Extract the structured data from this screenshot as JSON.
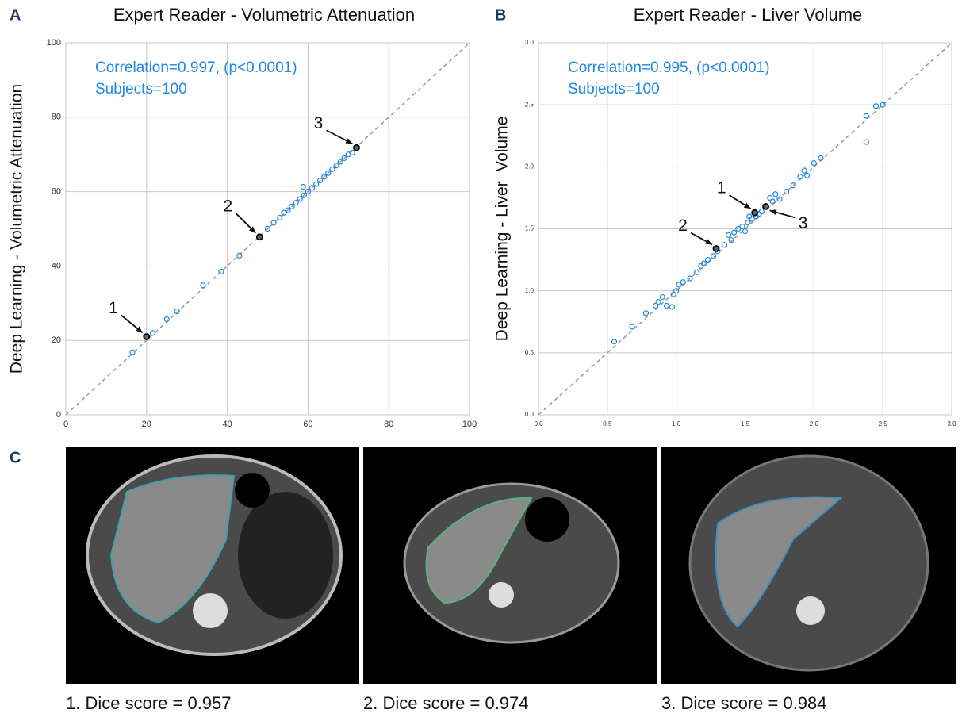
{
  "panel_labels": [
    "A",
    "B",
    "C"
  ],
  "chart_data": [
    {
      "type": "scatter",
      "title": "Expert Reader - Volumetric Attenuation",
      "y_label": "Deep Learning - Volumetric Attenuation",
      "annotations": [
        "Correlation=0.997, (p<0.0001)",
        "Subjects=100"
      ],
      "color": "#1e88e5",
      "x": [
        16.5,
        21.5,
        25,
        27.5,
        34,
        38.5,
        43,
        50,
        51.5,
        53,
        54,
        55,
        56,
        57,
        58,
        58.8,
        59,
        60,
        61,
        62,
        63,
        64,
        65,
        66,
        67,
        68,
        69,
        70,
        71
      ],
      "values": [
        16.8,
        22,
        25.7,
        27.8,
        34.8,
        38.5,
        42.8,
        50,
        51.6,
        53,
        54.3,
        55,
        56,
        57,
        58,
        61.3,
        59,
        60,
        61,
        62,
        63,
        64,
        65,
        66,
        67,
        68,
        69,
        70,
        70.5
      ],
      "highlight": {
        "x": [
          20,
          48,
          72
        ],
        "values": [
          21,
          47.8,
          71.8
        ],
        "labels": [
          "1",
          "2",
          "3"
        ]
      },
      "xlim": [
        0,
        100
      ],
      "ylim": [
        0,
        100
      ],
      "xticks": [
        0,
        20,
        40,
        60,
        80,
        100
      ],
      "yticks": [
        0,
        20,
        40,
        60,
        80,
        100
      ],
      "grid": true
    },
    {
      "type": "scatter",
      "title": "Expert Reader - Liver Volume",
      "y_label": "Deep Learning - Liver  Volume",
      "annotations": [
        "Correlation=0.995, (p<0.0001)",
        "Subjects=100"
      ],
      "color": "#1e88e5",
      "x": [
        0.55,
        0.68,
        0.78,
        0.85,
        0.87,
        0.9,
        0.93,
        0.97,
        0.98,
        1.0,
        1.02,
        1.05,
        1.1,
        1.15,
        1.18,
        1.2,
        1.23,
        1.27,
        1.3,
        1.35,
        1.38,
        1.4,
        1.42,
        1.45,
        1.48,
        1.5,
        1.52,
        1.53,
        1.55,
        1.58,
        1.6,
        1.62,
        1.68,
        1.7,
        1.72,
        1.75,
        1.8,
        1.85,
        1.9,
        1.93,
        1.95,
        2.0,
        2.05,
        2.38,
        2.38,
        2.45,
        2.5
      ],
      "values": [
        0.59,
        0.71,
        0.82,
        0.88,
        0.91,
        0.95,
        0.88,
        0.87,
        0.97,
        1.0,
        1.05,
        1.07,
        1.1,
        1.15,
        1.2,
        1.22,
        1.25,
        1.28,
        1.32,
        1.37,
        1.45,
        1.41,
        1.47,
        1.5,
        1.52,
        1.48,
        1.55,
        1.6,
        1.58,
        1.6,
        1.62,
        1.64,
        1.75,
        1.72,
        1.78,
        1.74,
        1.8,
        1.85,
        1.92,
        1.97,
        1.93,
        2.03,
        2.07,
        2.41,
        2.2,
        2.49,
        2.5
      ],
      "highlight": {
        "x": [
          1.57,
          1.29,
          1.65
        ],
        "values": [
          1.63,
          1.34,
          1.68
        ],
        "labels": [
          "1",
          "2",
          "3"
        ]
      },
      "xlim": [
        0,
        3
      ],
      "ylim": [
        0,
        3
      ],
      "xticks": [
        {
          "value": 0,
          "label": "0.0"
        },
        0.5,
        {
          "value": 1,
          "label": "1.0"
        },
        1.5,
        {
          "value": 2,
          "label": "2.0"
        },
        2.5,
        {
          "value": 3,
          "label": "3.0"
        }
      ],
      "yticks": [
        {
          "value": 0,
          "label": "0.0"
        },
        0.5,
        {
          "value": 1,
          "label": "1.0"
        },
        1.5,
        {
          "value": 2,
          "label": "2.0"
        },
        2.5,
        {
          "value": 3,
          "label": "3.0"
        }
      ],
      "grid": true
    }
  ],
  "captions": [
    "1. Dice score = 0.957",
    "2. Dice score = 0.974",
    "3. Dice score = 0.984"
  ]
}
